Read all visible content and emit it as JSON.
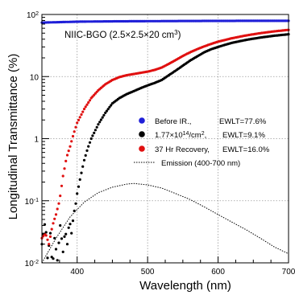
{
  "chart_data": {
    "type": "scatter",
    "inset_title": "NIIC-BGO (2.5×2.5×20 cm",
    "inset_title_sup": "3",
    "inset_title_end": ")",
    "xlabel": "Wavelength (nm)",
    "ylabel": "Longitudinal Transmittance (%)",
    "xlim": [
      350,
      700
    ],
    "ylim": [
      0.01,
      100
    ],
    "y_scale": "log",
    "x_ticks": [
      {
        "value": 400,
        "label": "400"
      },
      {
        "value": 500,
        "label": "500"
      },
      {
        "value": 600,
        "label": "600"
      },
      {
        "value": 700,
        "label": "700"
      }
    ],
    "y_ticks": [
      {
        "value": 0.01,
        "base": "10",
        "sup": "-2"
      },
      {
        "value": 0.1,
        "base": "10",
        "sup": "-1"
      },
      {
        "value": 1,
        "base": "1",
        "sup": ""
      },
      {
        "value": 10,
        "base": "10",
        "sup": ""
      },
      {
        "value": 100,
        "base": "10",
        "sup": "2"
      }
    ],
    "grid": true,
    "legend_position": "right-middle",
    "legend": [
      {
        "label": "Before IR.,",
        "stat": "EWLT=77.6%",
        "color": "#1f1fd8",
        "marker": "dot"
      },
      {
        "label": "1.77×10",
        "sup": "14",
        "label_end": "/cm",
        "sup2": "2",
        "label_end2": ",",
        "stat": "EWLT=9.1%",
        "color": "#000000",
        "marker": "dot"
      },
      {
        "label": "37 Hr Recovery,",
        "stat": "EWLT=16.0%",
        "color": "#e01010",
        "marker": "dot"
      },
      {
        "label": "Emission (400-700 nm)",
        "color": "#000000",
        "marker": "dotted-line"
      }
    ],
    "series": [
      {
        "color": "#1f1fd8",
        "style": "dots",
        "points": [
          [
            350,
            74
          ],
          [
            360,
            74.5
          ],
          [
            370,
            75
          ],
          [
            380,
            75.5
          ],
          [
            390,
            76
          ],
          [
            400,
            76.5
          ],
          [
            420,
            77
          ],
          [
            450,
            77.5
          ],
          [
            500,
            78
          ],
          [
            550,
            78.5
          ],
          [
            600,
            78.8
          ],
          [
            650,
            79
          ],
          [
            700,
            79
          ]
        ]
      },
      {
        "color": "#000000",
        "style": "dots",
        "points": [
          [
            350,
            0.02
          ],
          [
            355,
            0.05
          ],
          [
            358,
            0.012
          ],
          [
            362,
            0.03
          ],
          [
            365,
            0.008
          ],
          [
            368,
            0.025
          ],
          [
            372,
            0.011
          ],
          [
            376,
            0.04
          ],
          [
            380,
            0.015
          ],
          [
            383,
            0.035
          ],
          [
            386,
            0.02
          ],
          [
            389,
            0.05
          ],
          [
            392,
            0.03
          ],
          [
            395,
            0.06
          ],
          [
            398,
            0.09
          ],
          [
            400,
            0.13
          ],
          [
            405,
            0.25
          ],
          [
            410,
            0.45
          ],
          [
            415,
            0.7
          ],
          [
            420,
            1.0
          ],
          [
            430,
            1.7
          ],
          [
            440,
            2.6
          ],
          [
            450,
            3.7
          ],
          [
            460,
            4.5
          ],
          [
            470,
            5.2
          ],
          [
            480,
            5.8
          ],
          [
            490,
            6.5
          ],
          [
            500,
            7.2
          ],
          [
            510,
            7.9
          ],
          [
            520,
            8.8
          ],
          [
            530,
            10.5
          ],
          [
            540,
            12.5
          ],
          [
            550,
            15
          ],
          [
            560,
            18
          ],
          [
            570,
            21
          ],
          [
            580,
            24.5
          ],
          [
            590,
            27.5
          ],
          [
            600,
            30
          ],
          [
            610,
            32.5
          ],
          [
            620,
            35
          ],
          [
            640,
            39
          ],
          [
            660,
            42.5
          ],
          [
            680,
            45.5
          ],
          [
            700,
            48
          ]
        ]
      },
      {
        "color": "#e01010",
        "style": "dots",
        "points": [
          [
            350,
            0.025
          ],
          [
            355,
            0.03
          ],
          [
            360,
            0.02
          ],
          [
            365,
            0.04
          ],
          [
            370,
            0.06
          ],
          [
            375,
            0.1
          ],
          [
            380,
            0.25
          ],
          [
            385,
            0.5
          ],
          [
            390,
            0.75
          ],
          [
            395,
            1.2
          ],
          [
            400,
            1.8
          ],
          [
            410,
            3.0
          ],
          [
            420,
            4.5
          ],
          [
            430,
            6.0
          ],
          [
            440,
            7.5
          ],
          [
            450,
            8.8
          ],
          [
            460,
            9.8
          ],
          [
            470,
            10.5
          ],
          [
            480,
            11.0
          ],
          [
            490,
            11.5
          ],
          [
            500,
            12.0
          ],
          [
            510,
            12.8
          ],
          [
            520,
            14.0
          ],
          [
            530,
            16.0
          ],
          [
            540,
            18.5
          ],
          [
            550,
            21.5
          ],
          [
            560,
            24.5
          ],
          [
            570,
            27.5
          ],
          [
            580,
            30.5
          ],
          [
            590,
            33.5
          ],
          [
            600,
            36.5
          ],
          [
            620,
            41.5
          ],
          [
            640,
            46
          ],
          [
            660,
            50
          ],
          [
            680,
            53.5
          ],
          [
            700,
            56.5
          ]
        ]
      },
      {
        "color": "#000000",
        "style": "dotted-line",
        "points": [
          [
            350,
            0.01
          ],
          [
            370,
            0.025
          ],
          [
            390,
            0.055
          ],
          [
            410,
            0.095
          ],
          [
            430,
            0.135
          ],
          [
            450,
            0.165
          ],
          [
            470,
            0.185
          ],
          [
            480,
            0.19
          ],
          [
            500,
            0.18
          ],
          [
            520,
            0.16
          ],
          [
            540,
            0.13
          ],
          [
            560,
            0.105
          ],
          [
            580,
            0.08
          ],
          [
            600,
            0.06
          ],
          [
            620,
            0.045
          ],
          [
            640,
            0.034
          ],
          [
            660,
            0.025
          ],
          [
            680,
            0.018
          ],
          [
            700,
            0.014
          ]
        ]
      }
    ]
  }
}
